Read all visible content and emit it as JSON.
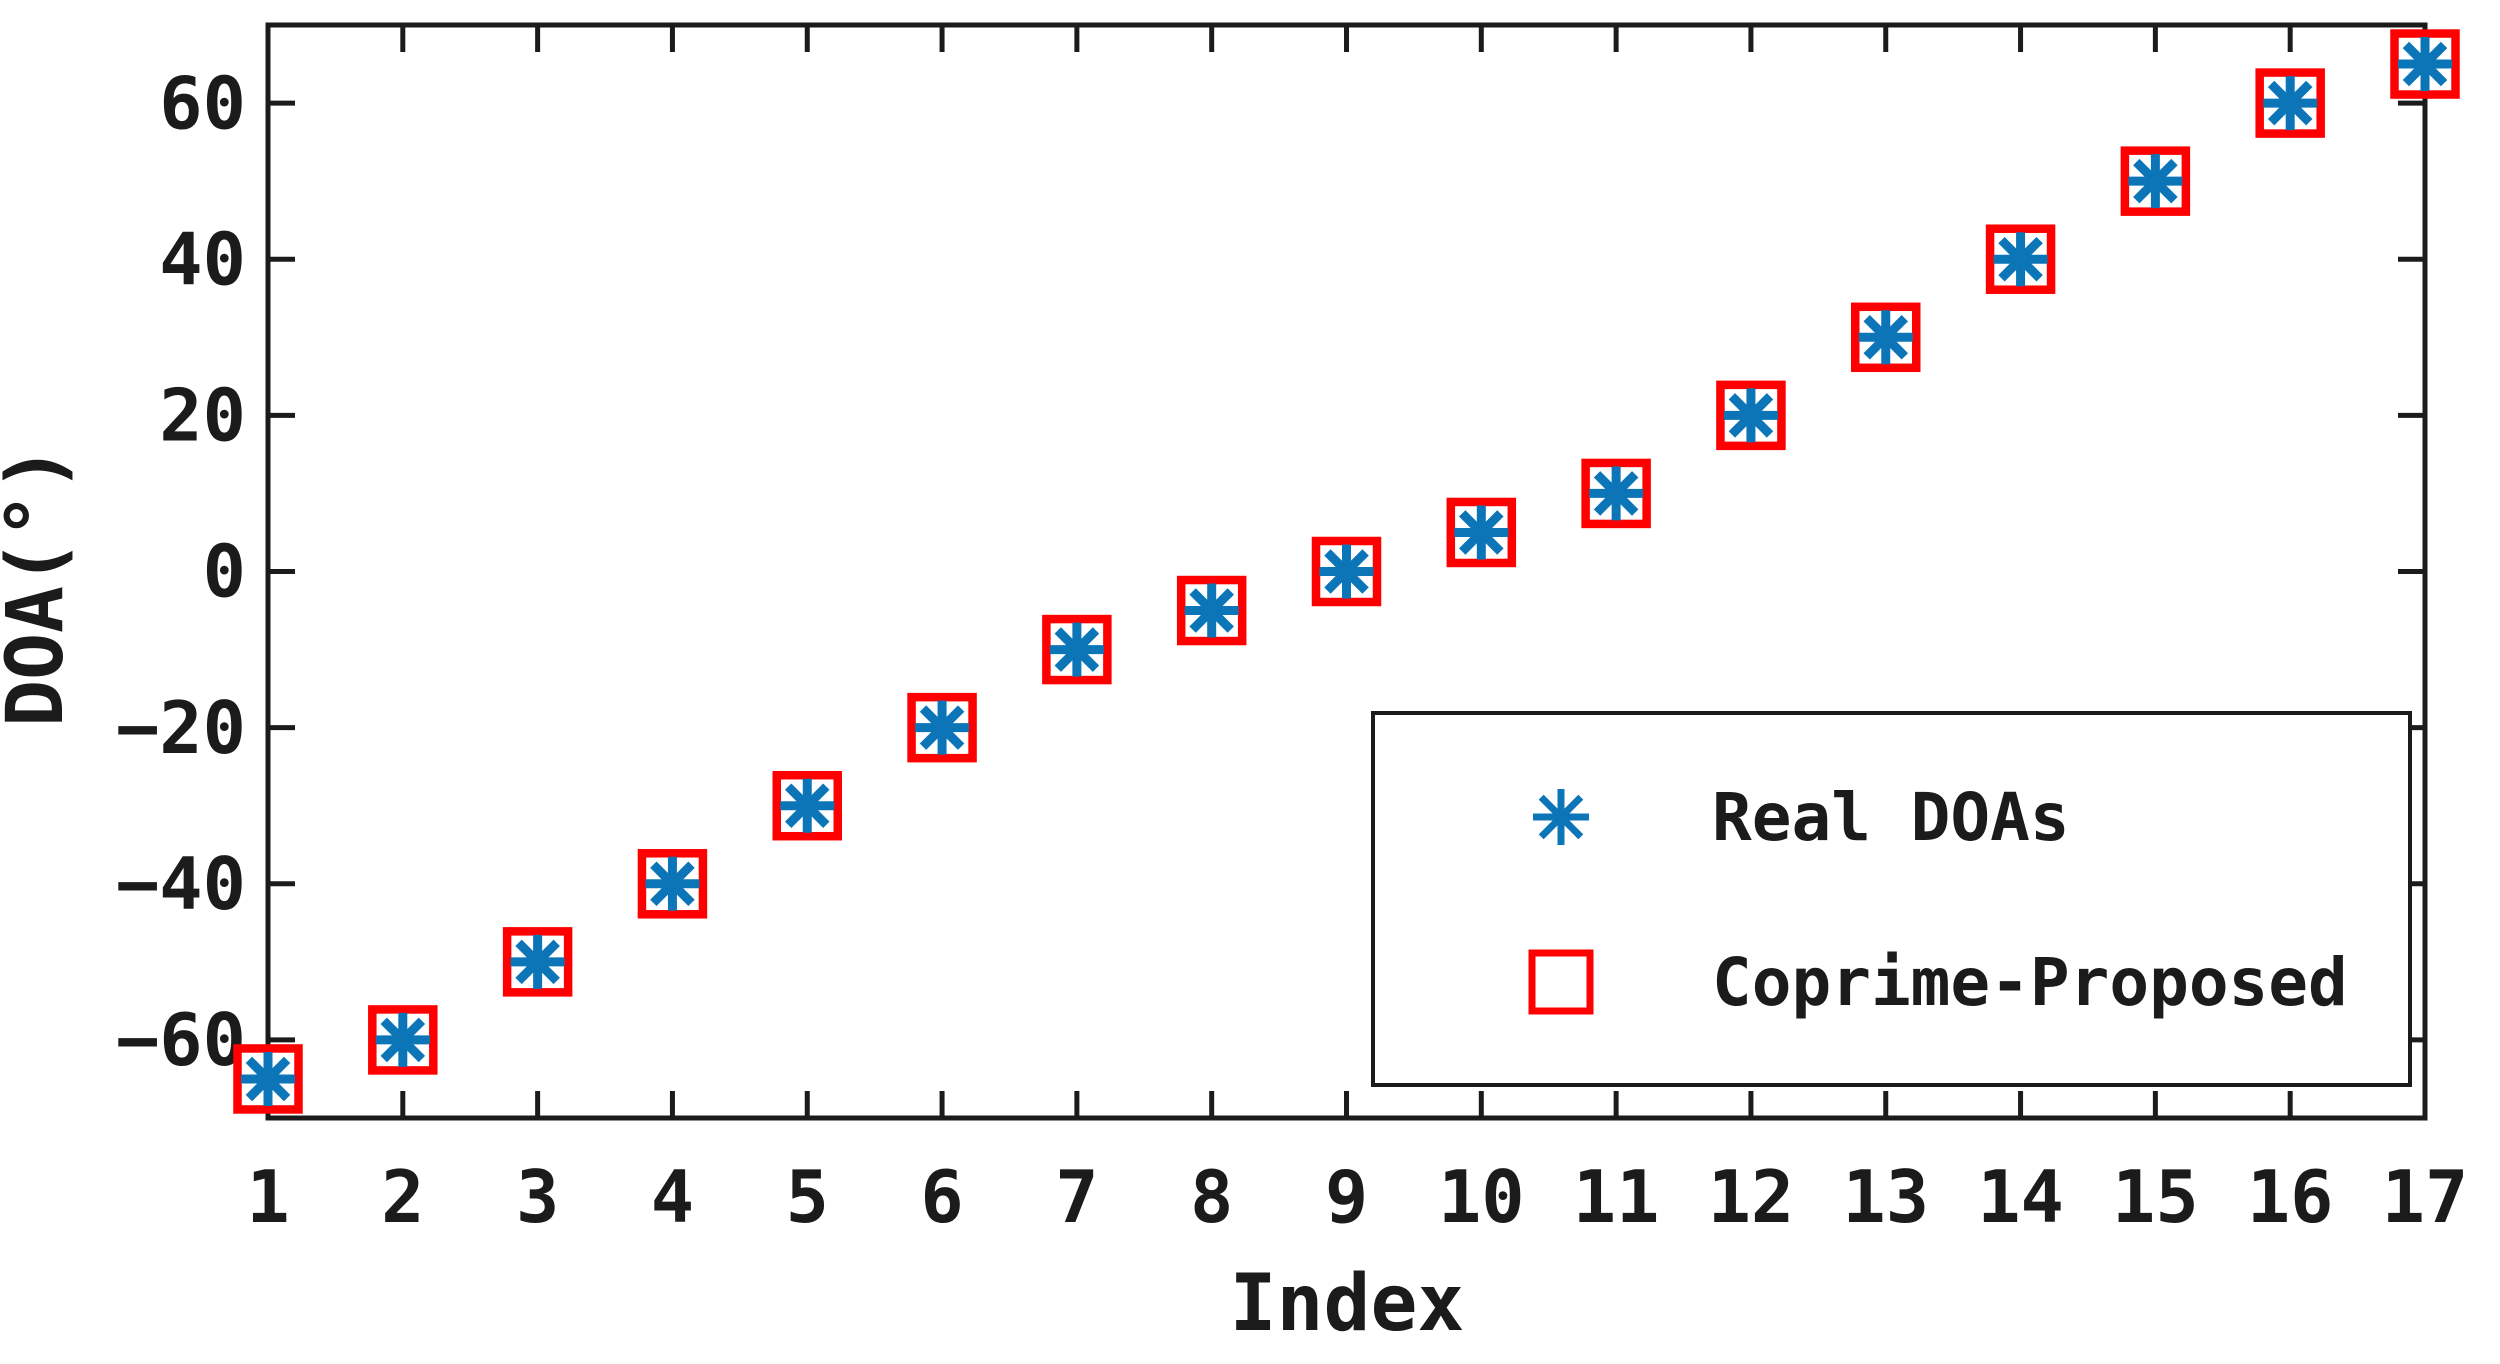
{
  "colors": {
    "blue": "#0c75b8",
    "red": "#ff0000",
    "axis": "#1b1b1b",
    "background": "#ffffff",
    "marker_face": "#ffffff"
  },
  "chart_data": {
    "type": "scatter",
    "title": "",
    "xlabel": "Index",
    "ylabel": "DOA(°)",
    "xlim": [
      1,
      17
    ],
    "ylim": [
      -70,
      70
    ],
    "grid": false,
    "box": true,
    "ticks_direction": "in",
    "x": [
      1,
      2,
      3,
      4,
      5,
      6,
      7,
      8,
      9,
      10,
      11,
      12,
      13,
      14,
      15,
      16,
      17
    ],
    "xtick_labels": [
      "1",
      "2",
      "3",
      "4",
      "5",
      "6",
      "7",
      "8",
      "9",
      "10",
      "11",
      "12",
      "13",
      "14",
      "15",
      "16",
      "17"
    ],
    "yticks": [
      -60,
      -40,
      -20,
      0,
      20,
      40,
      60
    ],
    "ytick_labels": [
      "−60",
      "−40",
      "−20",
      "0",
      "20",
      "40",
      "60"
    ],
    "series": [
      {
        "name": "Real DOAs",
        "marker": "asterisk",
        "color_key": "blue",
        "values": [
          -65,
          -60,
          -50,
          -40,
          -30,
          -20,
          -10,
          -5,
          0,
          5,
          10,
          20,
          30,
          40,
          50,
          60,
          65
        ]
      },
      {
        "name": "Coprime-Proposed",
        "marker": "open-square",
        "color_key": "red",
        "values": [
          -65,
          -60,
          -50,
          -40,
          -30,
          -20,
          -10,
          -5,
          0,
          5,
          10,
          20,
          30,
          40,
          50,
          60,
          65
        ]
      }
    ],
    "legend": {
      "position": "inside-lower-right",
      "entries": [
        {
          "label": "Real DOAs",
          "marker": "blue-asterisk"
        },
        {
          "label": "Coprime-Proposed",
          "marker": "red-open-square"
        }
      ]
    }
  }
}
